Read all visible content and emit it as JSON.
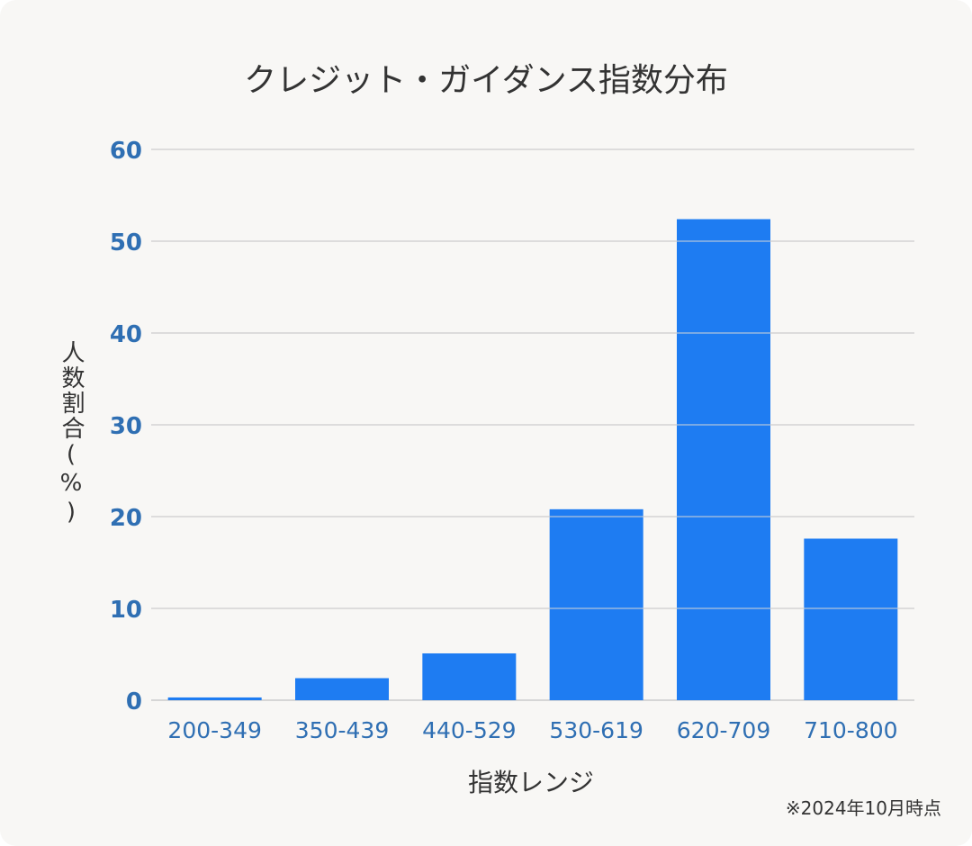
{
  "chart_data": {
    "type": "bar",
    "title": "クレジット・ガイダンス指数分布",
    "xlabel": "指数レンジ",
    "ylabel": "人数割合(%)",
    "categories": [
      "200-349",
      "350-439",
      "440-529",
      "530-619",
      "620-709",
      "710-800"
    ],
    "values": [
      0.3,
      2.4,
      5.1,
      20.8,
      52.4,
      17.6
    ],
    "ylim": [
      0,
      60
    ],
    "yticks": [
      "0",
      "10",
      "20",
      "30",
      "40",
      "50",
      "60"
    ],
    "grid": true,
    "note": "※2024年10月時点",
    "colors": {
      "bar": "#1e7cf2",
      "tick": "#2f6fb3",
      "grid": "#d6d6d6"
    }
  }
}
